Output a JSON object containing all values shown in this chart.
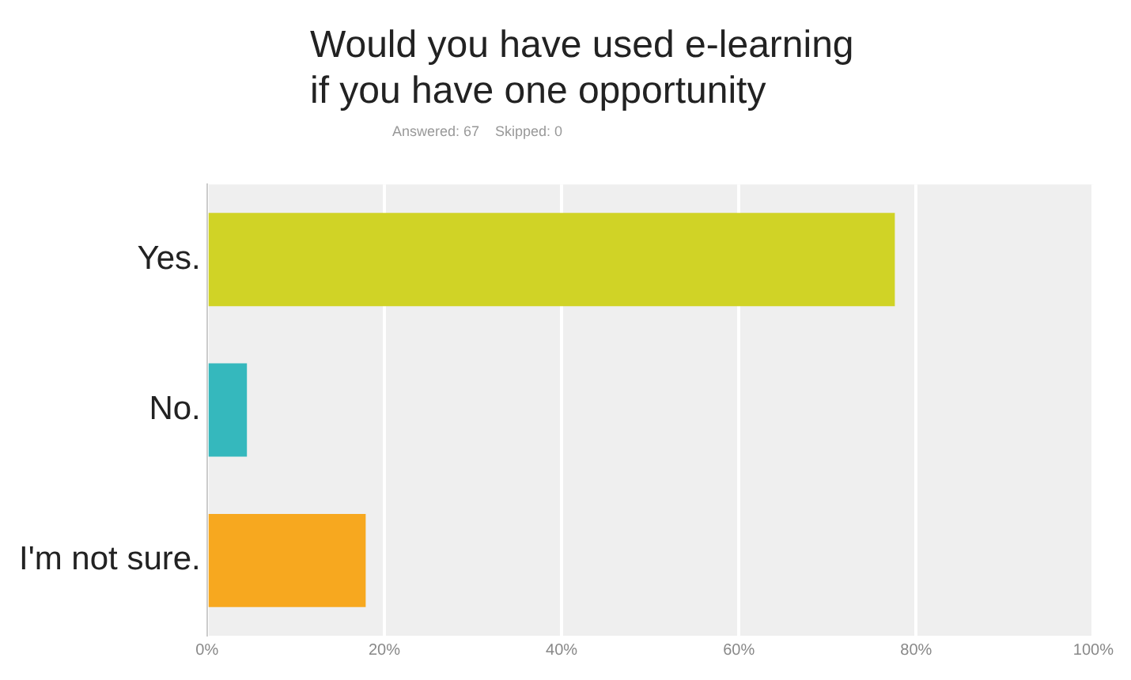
{
  "chart_data": {
    "type": "bar",
    "orientation": "horizontal",
    "title": "Would you have used e-learning\nif you have one opportunity",
    "subtitle": "Answered: 67    Skipped: 0",
    "categories": [
      "Yes.",
      "No.",
      "I'm not sure."
    ],
    "values": [
      77.6,
      4.5,
      17.9
    ],
    "colors": [
      "#d0d326",
      "#35b8bd",
      "#f7a81f"
    ],
    "xlim": [
      0,
      100
    ],
    "xticks": [
      {
        "value": 0,
        "label": "0%"
      },
      {
        "value": 20,
        "label": "20%"
      },
      {
        "value": 40,
        "label": "40%"
      },
      {
        "value": 60,
        "label": "60%"
      },
      {
        "value": 80,
        "label": "80%"
      },
      {
        "value": 100,
        "label": "100%"
      }
    ],
    "grid": "x",
    "legend": false
  }
}
